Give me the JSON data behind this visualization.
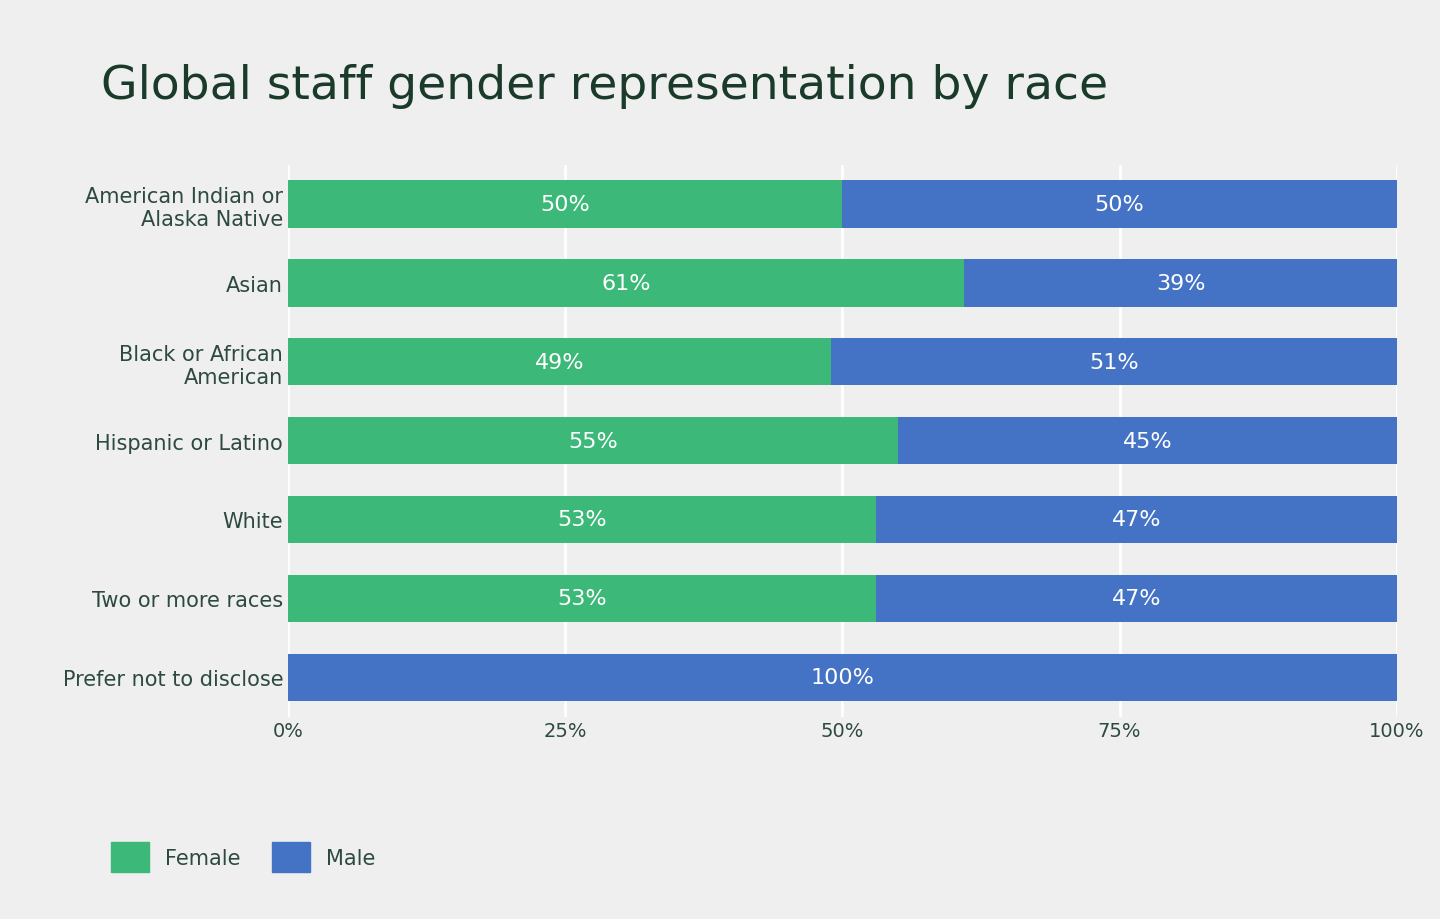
{
  "title": "Global staff gender representation by race",
  "categories": [
    "American Indian or\nAlaska Native",
    "Asian",
    "Black or African\nAmerican",
    "Hispanic or Latino",
    "White",
    "Two or more races",
    "Prefer not to disclose"
  ],
  "female": [
    50,
    61,
    49,
    55,
    53,
    53,
    0
  ],
  "male": [
    50,
    39,
    51,
    45,
    47,
    47,
    100
  ],
  "female_color": "#3cb878",
  "male_color": "#4472c4",
  "background_color": "#efefef",
  "title_color": "#1a3a2a",
  "label_color": "#2d4a3e",
  "tick_color": "#2d4a3e",
  "bar_text_color": "#ffffff",
  "title_fontsize": 34,
  "label_fontsize": 15,
  "tick_fontsize": 14,
  "bar_text_fontsize": 16,
  "legend_fontsize": 15,
  "xlabel_ticks": [
    0,
    25,
    50,
    75,
    100
  ],
  "xlabel_tick_labels": [
    "0%",
    "25%",
    "50%",
    "75%",
    "100%"
  ]
}
